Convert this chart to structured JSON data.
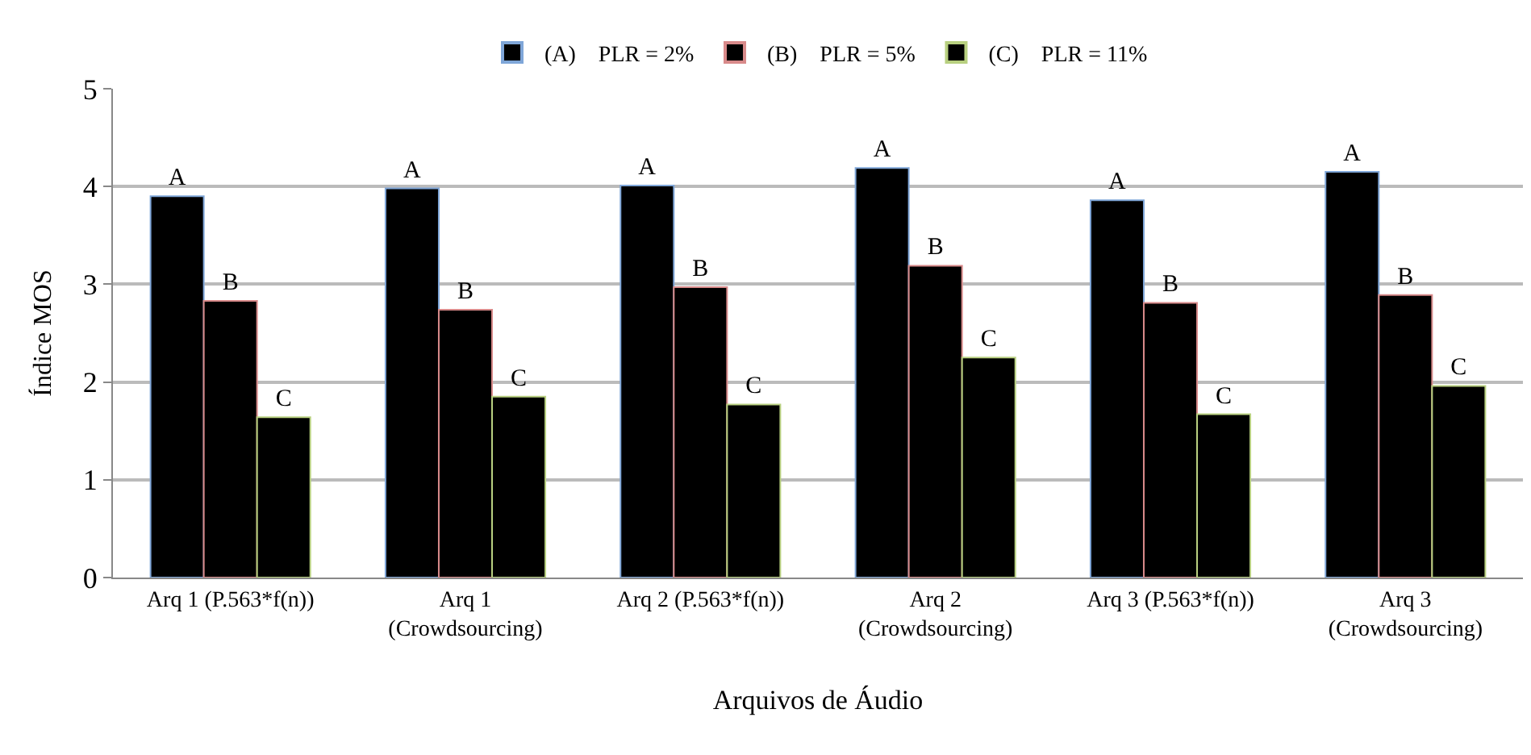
{
  "chart_data": {
    "type": "bar",
    "xlabel": "Arquivos de Áudio",
    "ylabel": "Índice MOS",
    "categories": [
      "Arq 1 (P.563*f(n))",
      "Arq 1\n(Crowdsourcing)",
      "Arq 2 (P.563*f(n))",
      "Arq 2\n(Crowdsourcing)",
      "Arq 3 (P.563*f(n))",
      "Arq 3\n(Crowdsourcing)"
    ],
    "series": [
      {
        "name": "(A)    PLR = 2%",
        "color": "#000000",
        "values": [
          3.9,
          3.98,
          4.01,
          4.19,
          3.86,
          4.15
        ],
        "value_labels": [
          "A",
          "A",
          "A",
          "A",
          "A",
          "A"
        ]
      },
      {
        "name": "(B)    PLR = 5%",
        "color": "#000000",
        "values": [
          2.83,
          2.74,
          2.97,
          3.19,
          2.81,
          2.89
        ],
        "value_labels": [
          "B",
          "B",
          "B",
          "B",
          "B",
          "B"
        ]
      },
      {
        "name": "(C)    PLR = 11%",
        "color": "#000000",
        "values": [
          1.64,
          1.85,
          1.77,
          2.25,
          1.67,
          1.96
        ],
        "value_labels": [
          "C",
          "C",
          "C",
          "C",
          "C",
          "C"
        ]
      }
    ],
    "ylim": [
      0,
      5
    ],
    "yticks": [
      0,
      1,
      2,
      3,
      4,
      5
    ],
    "grid": "y",
    "legend": "top"
  }
}
